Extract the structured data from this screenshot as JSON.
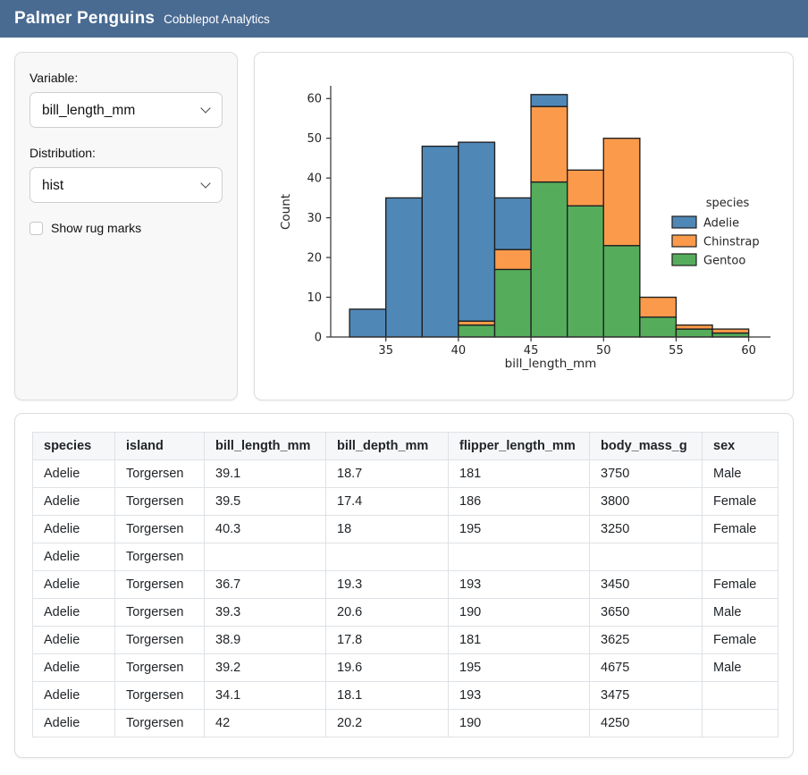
{
  "header": {
    "title": "Palmer Penguins",
    "subtitle": "Cobblepot Analytics"
  },
  "sidebar": {
    "variable_label": "Variable:",
    "variable_value": "bill_length_mm",
    "distribution_label": "Distribution:",
    "distribution_value": "hist",
    "rug_label": "Show rug marks",
    "rug_checked": false
  },
  "chart_data": {
    "type": "bar",
    "subtype": "stacked-histogram",
    "xlabel": "bill_length_mm",
    "ylabel": "Count",
    "legend_title": "species",
    "legend_position": "right",
    "grid": false,
    "bin_edges": [
      32.5,
      35,
      37.5,
      40,
      42.5,
      45,
      47.5,
      50,
      52.5,
      55,
      57.5,
      60
    ],
    "series": [
      {
        "name": "Adelie",
        "color": "#4f88b7",
        "values": [
          7,
          35,
          48,
          45,
          13,
          3,
          0,
          0,
          0,
          0,
          0
        ]
      },
      {
        "name": "Chinstrap",
        "color": "#fb9a4b",
        "values": [
          0,
          0,
          0,
          1,
          5,
          19,
          9,
          27,
          5,
          1,
          1
        ]
      },
      {
        "name": "Gentoo",
        "color": "#55ad5c",
        "values": [
          0,
          0,
          0,
          3,
          17,
          39,
          33,
          23,
          5,
          2,
          1
        ]
      }
    ],
    "stack_order_bottom_to_top": [
      "Gentoo",
      "Chinstrap",
      "Adelie"
    ],
    "bin_totals": [
      7,
      35,
      48,
      49,
      35,
      61,
      42,
      50,
      10,
      3,
      2
    ],
    "x_ticks": [
      35,
      40,
      45,
      50,
      55,
      60
    ],
    "y_ticks": [
      0,
      10,
      20,
      30,
      40,
      50,
      60
    ],
    "xlim": [
      31.2,
      61.5
    ],
    "ylim": [
      0,
      63.2
    ],
    "bar_edge_color": "#1f1f1f"
  },
  "table": {
    "columns": [
      "species",
      "island",
      "bill_length_mm",
      "bill_depth_mm",
      "flipper_length_mm",
      "body_mass_g",
      "sex"
    ],
    "rows": [
      [
        "Adelie",
        "Torgersen",
        "39.1",
        "18.7",
        "181",
        "3750",
        "Male"
      ],
      [
        "Adelie",
        "Torgersen",
        "39.5",
        "17.4",
        "186",
        "3800",
        "Female"
      ],
      [
        "Adelie",
        "Torgersen",
        "40.3",
        "18",
        "195",
        "3250",
        "Female"
      ],
      [
        "Adelie",
        "Torgersen",
        "",
        "",
        "",
        "",
        ""
      ],
      [
        "Adelie",
        "Torgersen",
        "36.7",
        "19.3",
        "193",
        "3450",
        "Female"
      ],
      [
        "Adelie",
        "Torgersen",
        "39.3",
        "20.6",
        "190",
        "3650",
        "Male"
      ],
      [
        "Adelie",
        "Torgersen",
        "38.9",
        "17.8",
        "181",
        "3625",
        "Female"
      ],
      [
        "Adelie",
        "Torgersen",
        "39.2",
        "19.6",
        "195",
        "4675",
        "Male"
      ],
      [
        "Adelie",
        "Torgersen",
        "34.1",
        "18.1",
        "193",
        "3475",
        ""
      ],
      [
        "Adelie",
        "Torgersen",
        "42",
        "20.2",
        "190",
        "4250",
        ""
      ]
    ]
  },
  "colors": {
    "header_bg": "#496b92",
    "adelie": "#4f88b7",
    "chinstrap": "#fb9a4b",
    "gentoo": "#55ad5c",
    "axis": "#333333"
  }
}
